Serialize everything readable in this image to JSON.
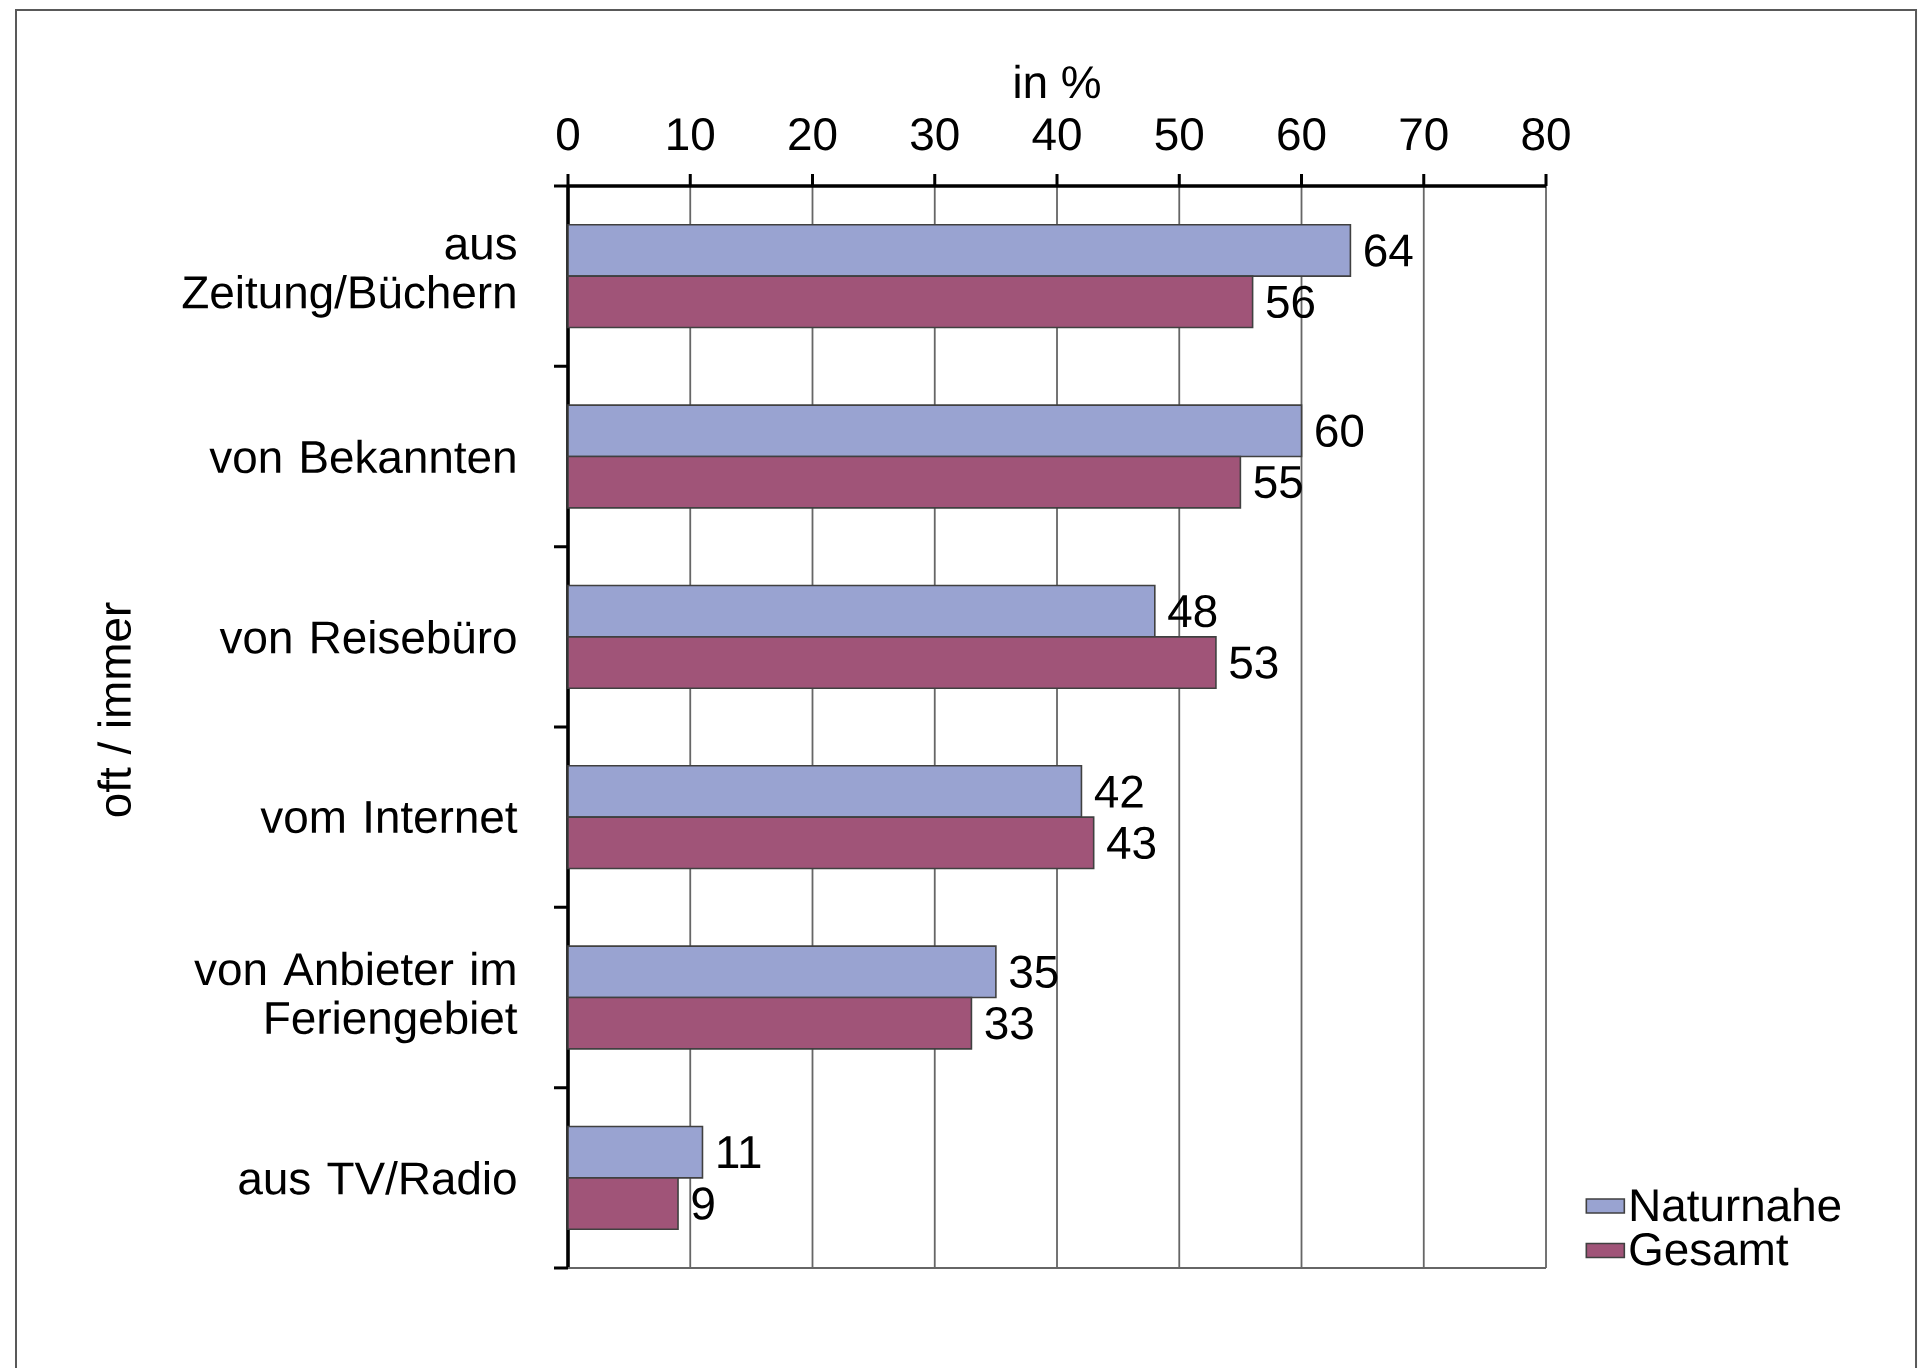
{
  "chart_data": {
    "type": "bar",
    "orientation": "horizontal",
    "xlabel": "in %",
    "ylabel": "oft / immer",
    "categories": [
      "aus Zeitung/Büchern",
      "von Bekannten",
      "von Reisebüro",
      "vom Internet",
      "von Anbieter im Feriengebiet",
      "aus TV/Radio"
    ],
    "series": [
      {
        "name": "Naturnahe",
        "color": "#99a3d1",
        "values": [
          64,
          60,
          48,
          42,
          35,
          11
        ]
      },
      {
        "name": "Gesamt",
        "color": "#a05478",
        "values": [
          56,
          55,
          53,
          43,
          33,
          9
        ]
      }
    ],
    "xlim": [
      0,
      80
    ],
    "xticks": [
      0,
      10,
      20,
      30,
      40,
      50,
      60,
      70,
      80
    ],
    "grid": "x",
    "legend": "bottom right",
    "data_labels": true
  }
}
